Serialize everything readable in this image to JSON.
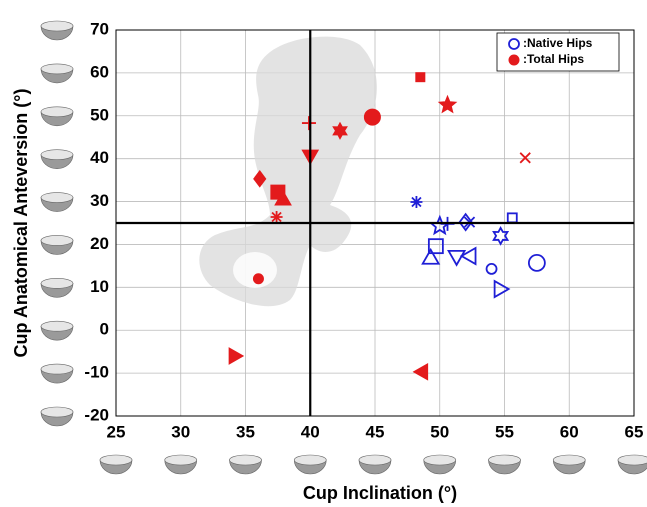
{
  "chart_data": {
    "type": "scatter",
    "xlabel": "Cup Inclination (°)",
    "ylabel": "Cup Anatomical Anteversion (°)",
    "xlim": [
      25,
      65
    ],
    "ylim": [
      -20,
      70
    ],
    "xticks": [
      25,
      30,
      35,
      40,
      45,
      50,
      55,
      60,
      65
    ],
    "yticks": [
      -20,
      -10,
      0,
      10,
      20,
      30,
      40,
      50,
      60,
      70
    ],
    "grid": true,
    "legend": "upper right",
    "reference_x": 40,
    "reference_y": 25,
    "series": [
      {
        "name": ":Native Hips",
        "color": "#1f1fd6",
        "filled": false,
        "x": [
          48.2,
          50,
          50.6,
          52,
          52.3,
          55.6,
          54.7,
          49.7,
          49.3,
          51.3,
          52.3,
          54,
          57.5,
          54.7
        ],
        "values": [
          29.9,
          24.3,
          24.8,
          25.2,
          25.2,
          26.2,
          22,
          19.6,
          16.9,
          17.1,
          17.3,
          14.3,
          15.7,
          9.6
        ],
        "markers": [
          "asterisk",
          "star",
          "plus",
          "diamond",
          "x",
          "square-small",
          "hexagram",
          "square",
          "triangle-up",
          "triangle-down",
          "triangle-left",
          "circle-small",
          "circle",
          "triangle-right"
        ]
      },
      {
        "name": ":Total Hips",
        "color": "#e31a1c",
        "filled": true,
        "x": [
          48.5,
          50.6,
          56.6,
          44.8,
          42.3,
          39.9,
          40,
          36.1,
          37.5,
          37.9,
          37.4,
          36,
          34.2,
          48.6
        ],
        "values": [
          59,
          52.5,
          40.2,
          49.7,
          46.5,
          48.3,
          40.6,
          35.3,
          32.2,
          30.6,
          26.4,
          12,
          -6,
          -9.7
        ],
        "markers": [
          "square-small",
          "star",
          "x",
          "circle",
          "hexagram",
          "plus",
          "triangle-down",
          "diamond",
          "square",
          "triangle-up",
          "asterisk",
          "circle-small",
          "triangle-right",
          "triangle-left"
        ]
      }
    ]
  }
}
